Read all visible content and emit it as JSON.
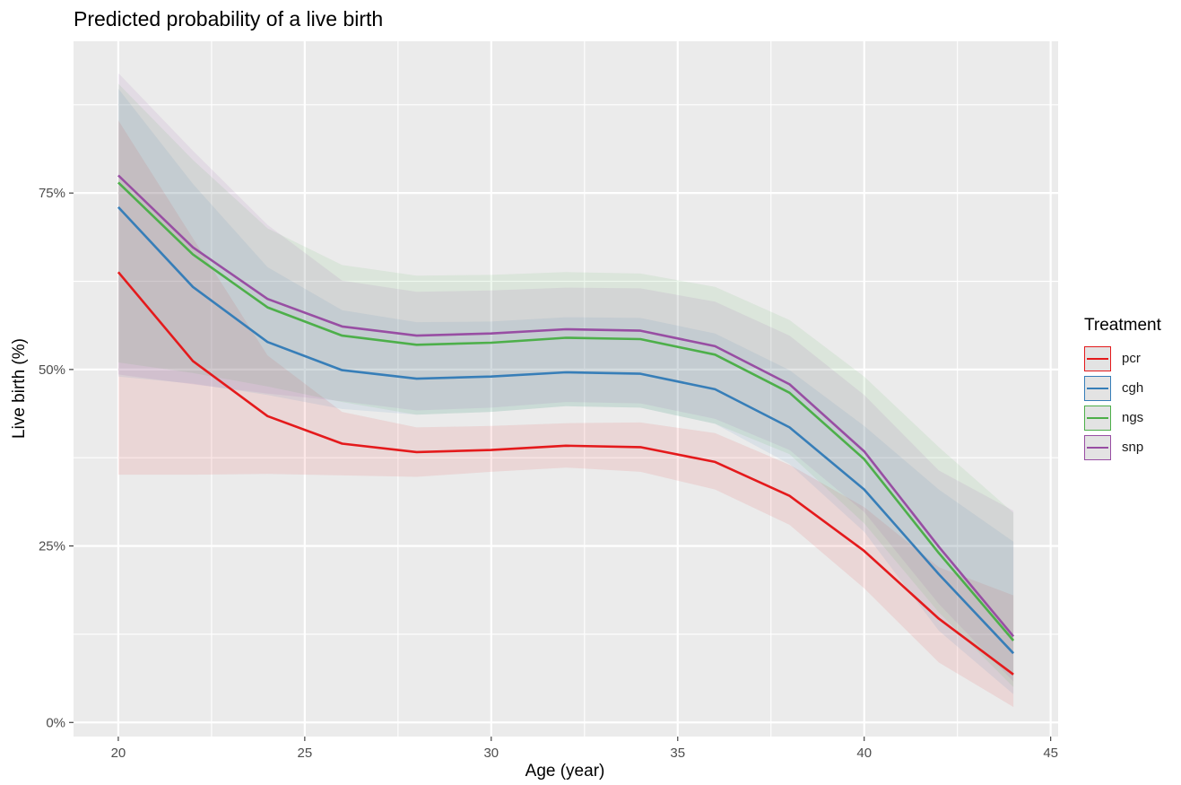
{
  "chart_data": {
    "type": "area",
    "title": "Predicted probability of a live birth",
    "xlabel": "Age (year)",
    "ylabel": "Live birth (%)",
    "xlim": [
      18.8,
      45.2
    ],
    "ylim": [
      -0.02,
      0.965
    ],
    "x_ticks": [
      20,
      25,
      30,
      35,
      40,
      45
    ],
    "x_tick_labels": [
      "20",
      "25",
      "30",
      "35",
      "40",
      "45"
    ],
    "y_ticks": [
      0,
      0.25,
      0.5,
      0.75
    ],
    "y_tick_labels": [
      "0%",
      "25%",
      "50%",
      "75%"
    ],
    "grid": true,
    "legend_title": "Treatment",
    "legend_position": "right",
    "x": [
      20,
      22,
      24,
      26,
      28,
      30,
      32,
      34,
      36,
      38,
      40,
      42,
      44
    ],
    "series": [
      {
        "name": "pcr",
        "color": "#e41a1c",
        "values": [
          0.638,
          0.512,
          0.434,
          0.395,
          0.383,
          0.386,
          0.392,
          0.39,
          0.369,
          0.321,
          0.243,
          0.147,
          0.068
        ],
        "lower": [
          0.351,
          0.351,
          0.352,
          0.35,
          0.348,
          0.355,
          0.361,
          0.355,
          0.33,
          0.28,
          0.19,
          0.085,
          0.022
        ],
        "upper": [
          0.853,
          0.686,
          0.52,
          0.44,
          0.418,
          0.42,
          0.424,
          0.425,
          0.41,
          0.365,
          0.305,
          0.22,
          0.18
        ]
      },
      {
        "name": "cgh",
        "color": "#377eb8",
        "values": [
          0.73,
          0.617,
          0.539,
          0.499,
          0.487,
          0.49,
          0.496,
          0.494,
          0.472,
          0.418,
          0.33,
          0.21,
          0.098
        ],
        "lower": [
          0.49,
          0.48,
          0.464,
          0.444,
          0.436,
          0.44,
          0.448,
          0.446,
          0.423,
          0.366,
          0.27,
          0.13,
          0.04
        ],
        "upper": [
          0.898,
          0.763,
          0.645,
          0.584,
          0.567,
          0.568,
          0.574,
          0.573,
          0.551,
          0.499,
          0.42,
          0.33,
          0.256
        ]
      },
      {
        "name": "ngs",
        "color": "#4daf4a",
        "values": [
          0.765,
          0.663,
          0.588,
          0.548,
          0.535,
          0.538,
          0.545,
          0.543,
          0.521,
          0.467,
          0.373,
          0.24,
          0.116
        ],
        "lower": [
          0.51,
          0.495,
          0.476,
          0.454,
          0.436,
          0.44,
          0.448,
          0.446,
          0.423,
          0.38,
          0.282,
          0.156,
          0.05
        ],
        "upper": [
          0.905,
          0.797,
          0.7,
          0.648,
          0.633,
          0.634,
          0.638,
          0.636,
          0.617,
          0.57,
          0.49,
          0.39,
          0.297
        ]
      },
      {
        "name": "snp",
        "color": "#984ea3",
        "values": [
          0.775,
          0.673,
          0.6,
          0.561,
          0.548,
          0.551,
          0.557,
          0.555,
          0.533,
          0.479,
          0.384,
          0.249,
          0.122
        ],
        "lower": [
          0.493,
          0.479,
          0.466,
          0.455,
          0.442,
          0.446,
          0.454,
          0.452,
          0.43,
          0.386,
          0.298,
          0.168,
          0.058
        ],
        "upper": [
          0.92,
          0.81,
          0.705,
          0.626,
          0.61,
          0.612,
          0.616,
          0.615,
          0.596,
          0.548,
          0.464,
          0.357,
          0.3
        ]
      }
    ]
  }
}
